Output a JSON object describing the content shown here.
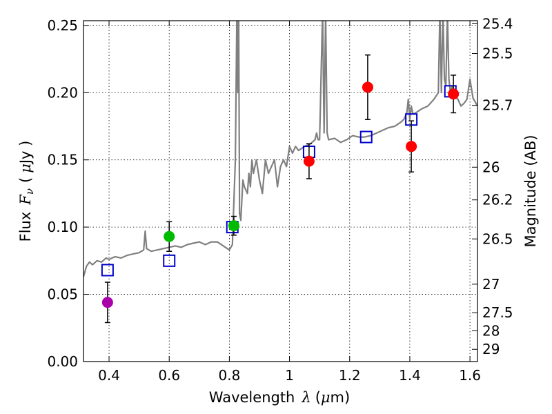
{
  "chart_data": {
    "type": "scatter",
    "xlabel": {
      "prefix": "Wavelength",
      "symbol": "λ",
      "unit_open": "(",
      "unit_mu": "μ",
      "unit_rest": "m)"
    },
    "ylabel": {
      "prefix": "Flux",
      "symbol": "F",
      "subscript": "ν",
      "unit_open": "(",
      "unit_mu": "μ",
      "unit_rest": "Jy )"
    },
    "y2label": "Magnitude (AB)",
    "xlim": [
      0.315,
      1.625
    ],
    "ylim": [
      0.0,
      0.2535
    ],
    "x_ticks": [
      {
        "value": 0.4,
        "label": "0.4"
      },
      {
        "value": 0.6,
        "label": "0.6"
      },
      {
        "value": 0.8,
        "label": "0.8"
      },
      {
        "value": 1.0,
        "label": "1"
      },
      {
        "value": 1.2,
        "label": "1.2"
      },
      {
        "value": 1.4,
        "label": "1.4"
      },
      {
        "value": 1.6,
        "label": "1.6"
      }
    ],
    "y_ticks": [
      {
        "value": 0.0,
        "label": "0.00"
      },
      {
        "value": 0.05,
        "label": "0.05"
      },
      {
        "value": 0.1,
        "label": "0.10"
      },
      {
        "value": 0.15,
        "label": "0.15"
      },
      {
        "value": 0.2,
        "label": "0.20"
      },
      {
        "value": 0.25,
        "label": "0.25"
      }
    ],
    "mag_ticks": [
      {
        "mag": 25.4,
        "label": "25.4"
      },
      {
        "mag": 25.5,
        "label": "25.5"
      },
      {
        "mag": 25.7,
        "label": "25.7"
      },
      {
        "mag": 26,
        "label": "26"
      },
      {
        "mag": 26.2,
        "label": "26.2"
      },
      {
        "mag": 26.5,
        "label": "26.5"
      },
      {
        "mag": 27,
        "label": "27"
      },
      {
        "mag": 27.5,
        "label": "27.5"
      },
      {
        "mag": 28,
        "label": "28"
      },
      {
        "mag": 29,
        "label": "29"
      }
    ],
    "grid": true,
    "colors": {
      "spectrum": "#808080",
      "model_box": "#0000cc",
      "error_bar": "#000000",
      "grid": "#000000"
    },
    "spectrum": {
      "x": [
        0.315,
        0.325,
        0.335,
        0.345,
        0.36,
        0.375,
        0.39,
        0.4,
        0.42,
        0.44,
        0.46,
        0.48,
        0.5,
        0.515,
        0.52,
        0.525,
        0.54,
        0.56,
        0.58,
        0.6,
        0.62,
        0.64,
        0.66,
        0.68,
        0.7,
        0.72,
        0.74,
        0.76,
        0.78,
        0.8,
        0.81,
        0.82,
        0.825,
        0.828,
        0.831,
        0.834,
        0.838,
        0.845,
        0.85,
        0.86,
        0.865,
        0.87,
        0.875,
        0.88,
        0.89,
        0.9,
        0.91,
        0.92,
        0.93,
        0.94,
        0.95,
        0.96,
        0.97,
        0.98,
        0.99,
        1.0,
        1.01,
        1.02,
        1.03,
        1.05,
        1.07,
        1.085,
        1.09,
        1.095,
        1.1,
        1.11,
        1.115,
        1.12,
        1.125,
        1.13,
        1.15,
        1.17,
        1.19,
        1.21,
        1.23,
        1.25,
        1.27,
        1.29,
        1.31,
        1.33,
        1.35,
        1.37,
        1.38,
        1.39,
        1.395,
        1.4,
        1.405,
        1.41,
        1.42,
        1.44,
        1.46,
        1.48,
        1.495,
        1.5,
        1.505,
        1.51,
        1.515,
        1.52,
        1.525,
        1.53,
        1.535,
        1.54,
        1.55,
        1.56,
        1.57,
        1.58,
        1.59,
        1.6,
        1.61,
        1.625
      ],
      "y": [
        0.063,
        0.071,
        0.074,
        0.072,
        0.075,
        0.074,
        0.077,
        0.076,
        0.078,
        0.077,
        0.079,
        0.08,
        0.081,
        0.083,
        0.097,
        0.084,
        0.082,
        0.083,
        0.084,
        0.085,
        0.086,
        0.085,
        0.087,
        0.088,
        0.089,
        0.087,
        0.089,
        0.089,
        0.086,
        0.083,
        0.087,
        0.15,
        0.26,
        0.2,
        0.26,
        0.11,
        0.105,
        0.135,
        0.13,
        0.125,
        0.14,
        0.13,
        0.15,
        0.14,
        0.15,
        0.135,
        0.125,
        0.15,
        0.14,
        0.145,
        0.15,
        0.13,
        0.145,
        0.15,
        0.145,
        0.16,
        0.155,
        0.16,
        0.157,
        0.16,
        0.162,
        0.165,
        0.17,
        0.165,
        0.165,
        0.26,
        0.17,
        0.26,
        0.17,
        0.165,
        0.166,
        0.163,
        0.165,
        0.168,
        0.167,
        0.167,
        0.168,
        0.17,
        0.172,
        0.174,
        0.175,
        0.178,
        0.18,
        0.185,
        0.195,
        0.18,
        0.19,
        0.184,
        0.185,
        0.188,
        0.19,
        0.195,
        0.2,
        0.26,
        0.2,
        0.26,
        0.21,
        0.205,
        0.26,
        0.21,
        0.2,
        0.205,
        0.197,
        0.195,
        0.19,
        0.192,
        0.195,
        0.21,
        0.196,
        0.19
      ]
    },
    "model_points": [
      {
        "x": 0.395,
        "y": 0.068
      },
      {
        "x": 0.6,
        "y": 0.075
      },
      {
        "x": 0.81,
        "y": 0.1
      },
      {
        "x": 1.065,
        "y": 0.156
      },
      {
        "x": 1.255,
        "y": 0.167
      },
      {
        "x": 1.405,
        "y": 0.18
      },
      {
        "x": 1.535,
        "y": 0.201
      }
    ],
    "observed_points": [
      {
        "x": 0.395,
        "y": 0.044,
        "err": 0.015,
        "color": "#aa00aa"
      },
      {
        "x": 0.6,
        "y": 0.093,
        "err": 0.011,
        "color": "#00bb00"
      },
      {
        "x": 0.815,
        "y": 0.101,
        "err": 0.007,
        "color": "#00bb00"
      },
      {
        "x": 1.065,
        "y": 0.149,
        "err": 0.013,
        "color": "#ff0000"
      },
      {
        "x": 1.26,
        "y": 0.204,
        "err": 0.024,
        "color": "#ff0000"
      },
      {
        "x": 1.405,
        "y": 0.16,
        "err": 0.019,
        "color": "#ff0000"
      },
      {
        "x": 1.545,
        "y": 0.199,
        "err": 0.014,
        "color": "#ff0000"
      }
    ]
  }
}
